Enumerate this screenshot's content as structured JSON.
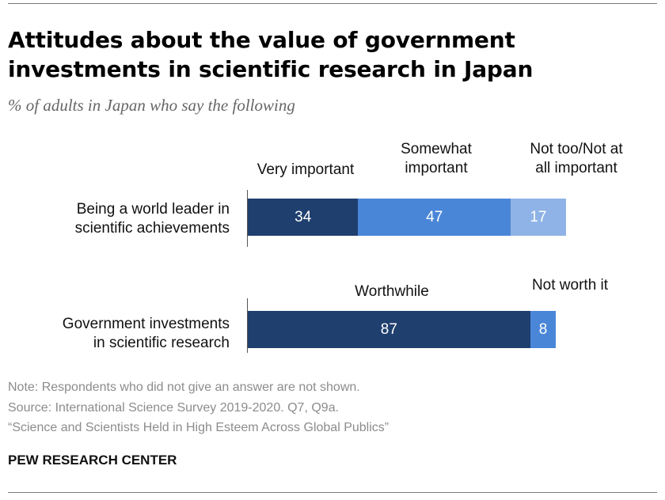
{
  "title": "Attitudes about the value of government investments in scientific research in Japan",
  "subtitle": "% of adults in Japan who say the following",
  "chart_data": [
    {
      "type": "bar",
      "orientation": "horizontal-stacked",
      "category": "Being a world leader in scientific achievements",
      "category_lines": [
        "Being a world leader in",
        "scientific achievements"
      ],
      "series": [
        {
          "name": "Very important",
          "value": 34,
          "color": "#1f3f6e"
        },
        {
          "name": "Somewhat important",
          "name_lines": [
            "Somewhat",
            "important"
          ],
          "value": 47,
          "color": "#4a86d8"
        },
        {
          "name": "Not too/Not at all important",
          "name_lines": [
            "Not too/Not at",
            "all important"
          ],
          "value": 17,
          "color": "#8fb3e6"
        }
      ]
    },
    {
      "type": "bar",
      "orientation": "horizontal-stacked",
      "category": "Government investments in scientific research",
      "category_lines": [
        "Government investments",
        "in scientific research"
      ],
      "series": [
        {
          "name": "Worthwhile",
          "value": 87,
          "color": "#1f3f6e"
        },
        {
          "name": "Not worth it",
          "value": 8,
          "color": "#4a86d8"
        }
      ]
    }
  ],
  "notes": {
    "note": "Note: Respondents who did not give an answer are not shown.",
    "source": "Source: International Science Survey 2019-2020. Q7, Q9a.",
    "report": "“Science and Scientists Held in High Esteem Across Global Publics”"
  },
  "brand": "PEW RESEARCH CENTER"
}
